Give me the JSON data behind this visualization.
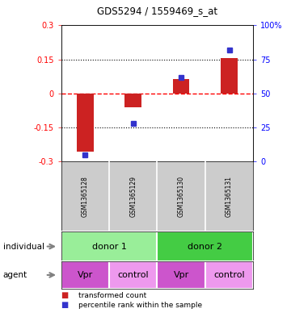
{
  "title": "GDS5294 / 1559469_s_at",
  "samples": [
    "GSM1365128",
    "GSM1365129",
    "GSM1365130",
    "GSM1365131"
  ],
  "bar_values": [
    -0.255,
    -0.06,
    0.065,
    0.155
  ],
  "dot_values_pct": [
    5,
    28,
    62,
    82
  ],
  "ylim_left": [
    -0.3,
    0.3
  ],
  "ylim_right": [
    0,
    100
  ],
  "yticks_left": [
    -0.3,
    -0.15,
    0,
    0.15,
    0.3
  ],
  "yticks_right": [
    0,
    25,
    50,
    75,
    100
  ],
  "ytick_labels_left": [
    "-0.3",
    "-0.15",
    "0",
    "0.15",
    "0.3"
  ],
  "ytick_labels_right": [
    "0",
    "25",
    "50",
    "75",
    "100%"
  ],
  "hlines": [
    -0.15,
    0,
    0.15
  ],
  "hline_styles": [
    "dotted",
    "dashed",
    "dotted"
  ],
  "hline_colors": [
    "black",
    "red",
    "black"
  ],
  "bar_color": "#cc2222",
  "dot_color": "#3333cc",
  "individual_groups": [
    {
      "label": "donor 1",
      "cols": [
        0,
        1
      ],
      "color": "#99ee99"
    },
    {
      "label": "donor 2",
      "cols": [
        2,
        3
      ],
      "color": "#44cc44"
    }
  ],
  "agent_groups": [
    {
      "label": "Vpr",
      "col": 0,
      "color": "#cc55cc"
    },
    {
      "label": "control",
      "col": 1,
      "color": "#ee99ee"
    },
    {
      "label": "Vpr",
      "col": 2,
      "color": "#cc55cc"
    },
    {
      "label": "control",
      "col": 3,
      "color": "#ee99ee"
    }
  ],
  "legend_items": [
    {
      "color": "#cc2222",
      "label": "transformed count"
    },
    {
      "color": "#3333cc",
      "label": "percentile rank within the sample"
    }
  ],
  "background_color": "#ffffff"
}
